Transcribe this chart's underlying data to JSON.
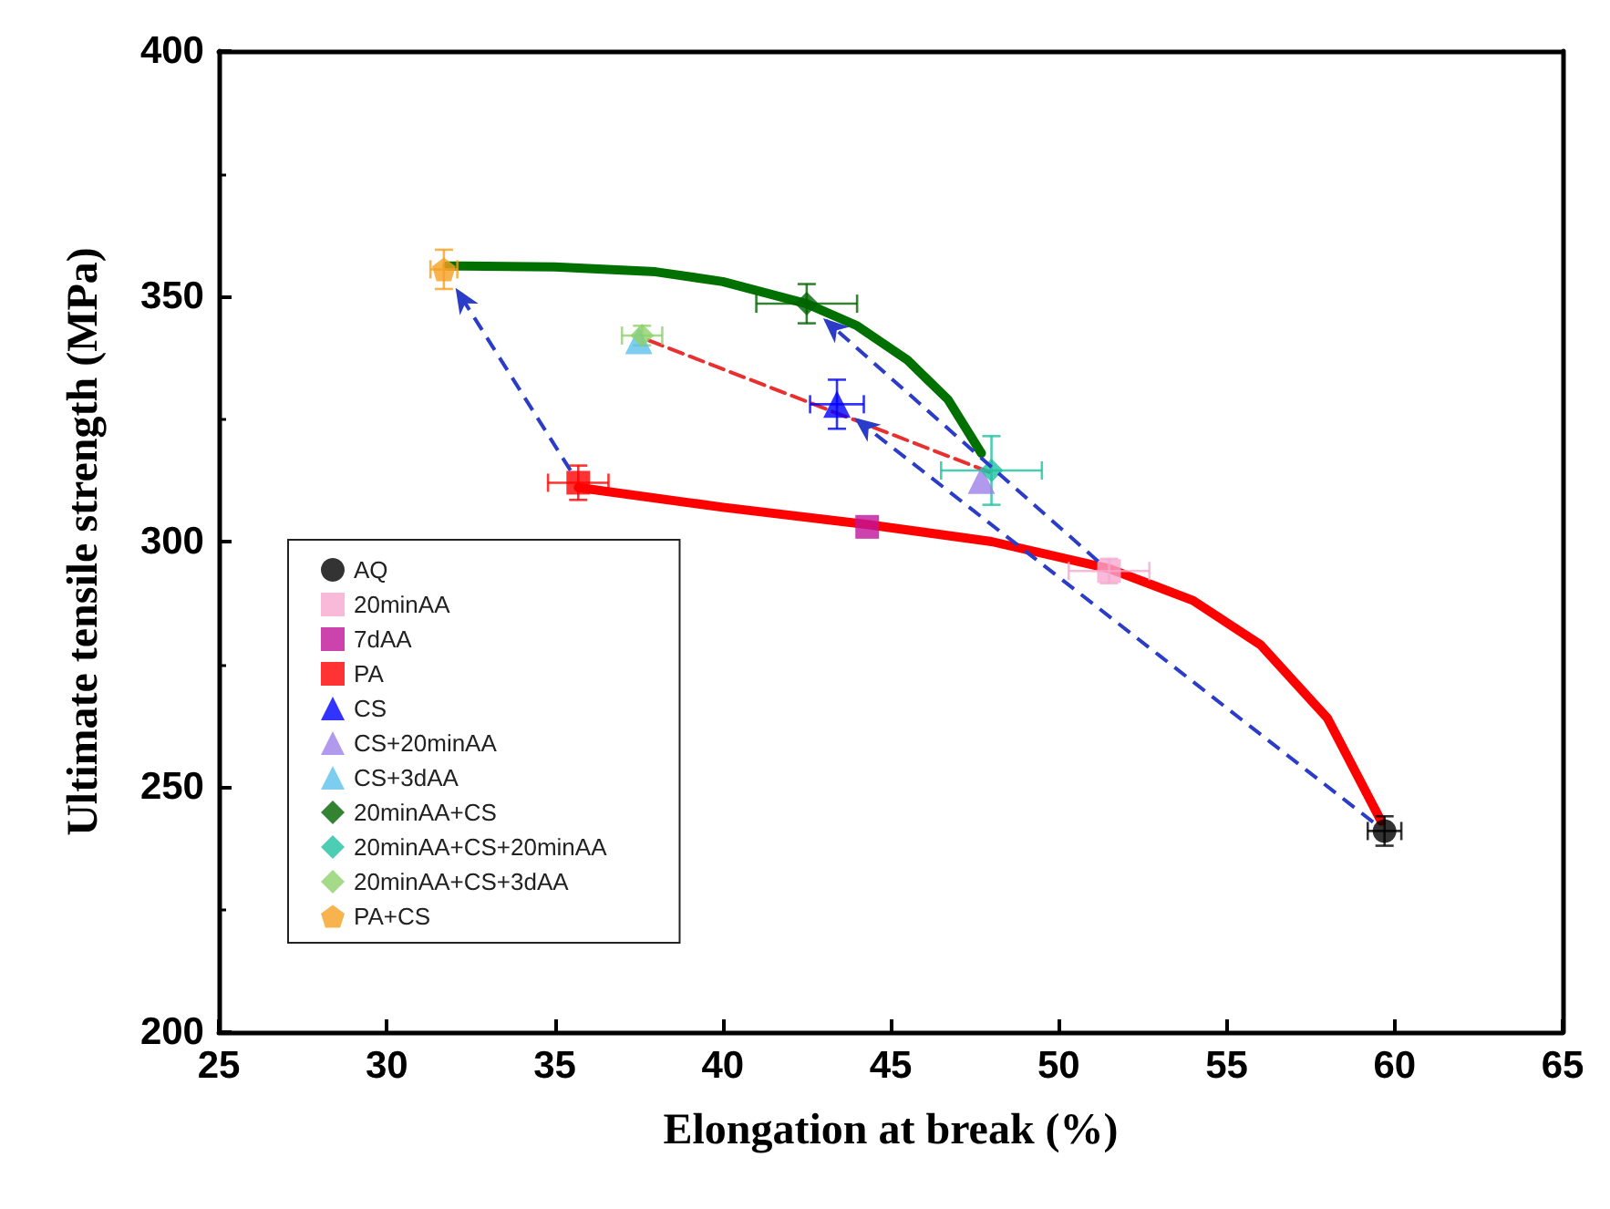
{
  "chart_data": {
    "type": "scatter",
    "xlabel": "Elongation at break (%)",
    "ylabel": "Ultimate tensile strength (MPa)",
    "xlim": [
      25,
      65
    ],
    "xticks": [
      25,
      30,
      35,
      40,
      45,
      50,
      55,
      60,
      65
    ],
    "ylim": [
      200,
      400
    ],
    "yticks": [
      200,
      250,
      300,
      350,
      400
    ],
    "grid": false,
    "legend": "bottom left",
    "series": [
      {
        "type": "line",
        "color": "#ff0000",
        "line_style": "solid",
        "x": [
          35.7,
          40,
          44.3,
          48,
          51.5,
          54,
          56,
          58,
          59.6
        ],
        "values": [
          311,
          307,
          303.5,
          300,
          294.5,
          288,
          279,
          264,
          243
        ]
      },
      {
        "type": "line",
        "color": "#007000",
        "line_style": "solid",
        "x": [
          31.8,
          35,
          38,
          40,
          42.5,
          44,
          45.5,
          46.7,
          47.7
        ],
        "values": [
          356.2,
          356,
          355,
          353,
          348.5,
          344,
          337,
          329,
          318
        ]
      },
      {
        "type": "line",
        "color": "#e83030",
        "line_style": "dashed",
        "x": [
          37.8,
          48
        ],
        "values": [
          341,
          314
        ]
      },
      {
        "name": "AQ",
        "color": "#000000",
        "marker": "circle",
        "x": [
          59.7
        ],
        "values": [
          241
        ],
        "errors": [
          3
        ],
        "xerrors": [
          0.5
        ]
      },
      {
        "name": "20minAA",
        "color": "#f7a8d0",
        "marker": "square",
        "x": [
          51.5
        ],
        "values": [
          294
        ],
        "errors": [
          2.5
        ],
        "xerrors": [
          1.2
        ]
      },
      {
        "name": "7dAA",
        "color": "#c0149a",
        "marker": "square",
        "x": [
          44.3
        ],
        "values": [
          303
        ],
        "errors": [
          null
        ],
        "xerrors": [
          null
        ]
      },
      {
        "name": "PA",
        "color": "#ff0000",
        "marker": "square",
        "x": [
          35.7
        ],
        "values": [
          312
        ],
        "errors": [
          3.5
        ],
        "xerrors": [
          0.9
        ]
      },
      {
        "name": "CS",
        "color": "#0000ff",
        "marker": "triangle",
        "x": [
          43.4
        ],
        "values": [
          328
        ],
        "errors": [
          5
        ],
        "xerrors": [
          0.8
        ]
      },
      {
        "name": "CS+20minAA",
        "color": "#9d7fe8",
        "marker": "triangle",
        "x": [
          47.7
        ],
        "values": [
          312.5
        ],
        "errors": [
          null
        ],
        "xerrors": [
          null
        ]
      },
      {
        "name": "CS+3dAA",
        "color": "#5bc0eb",
        "marker": "triangle",
        "x": [
          37.5
        ],
        "values": [
          341
        ],
        "errors": [
          null
        ],
        "xerrors": [
          null
        ]
      },
      {
        "name": "20minAA+CS",
        "color": "#006400",
        "marker": "diamond",
        "x": [
          42.5
        ],
        "values": [
          348.5
        ],
        "errors": [
          4
        ],
        "xerrors": [
          1.5
        ]
      },
      {
        "name": "20minAA+CS+20minAA",
        "color": "#20c0a0",
        "marker": "diamond",
        "x": [
          48
        ],
        "values": [
          314.5
        ],
        "errors": [
          7
        ],
        "xerrors": [
          1.5
        ]
      },
      {
        "name": "20minAA+CS+3dAA",
        "color": "#8fd16a",
        "marker": "diamond",
        "x": [
          37.6
        ],
        "values": [
          342
        ],
        "errors": [
          2
        ],
        "xerrors": [
          0.6
        ]
      },
      {
        "name": "PA+CS",
        "color": "#f5a020",
        "x": [
          31.7
        ],
        "values": [
          355.5
        ],
        "errors": [
          4
        ],
        "xerrors": [
          0.4
        ]
      }
    ]
  }
}
